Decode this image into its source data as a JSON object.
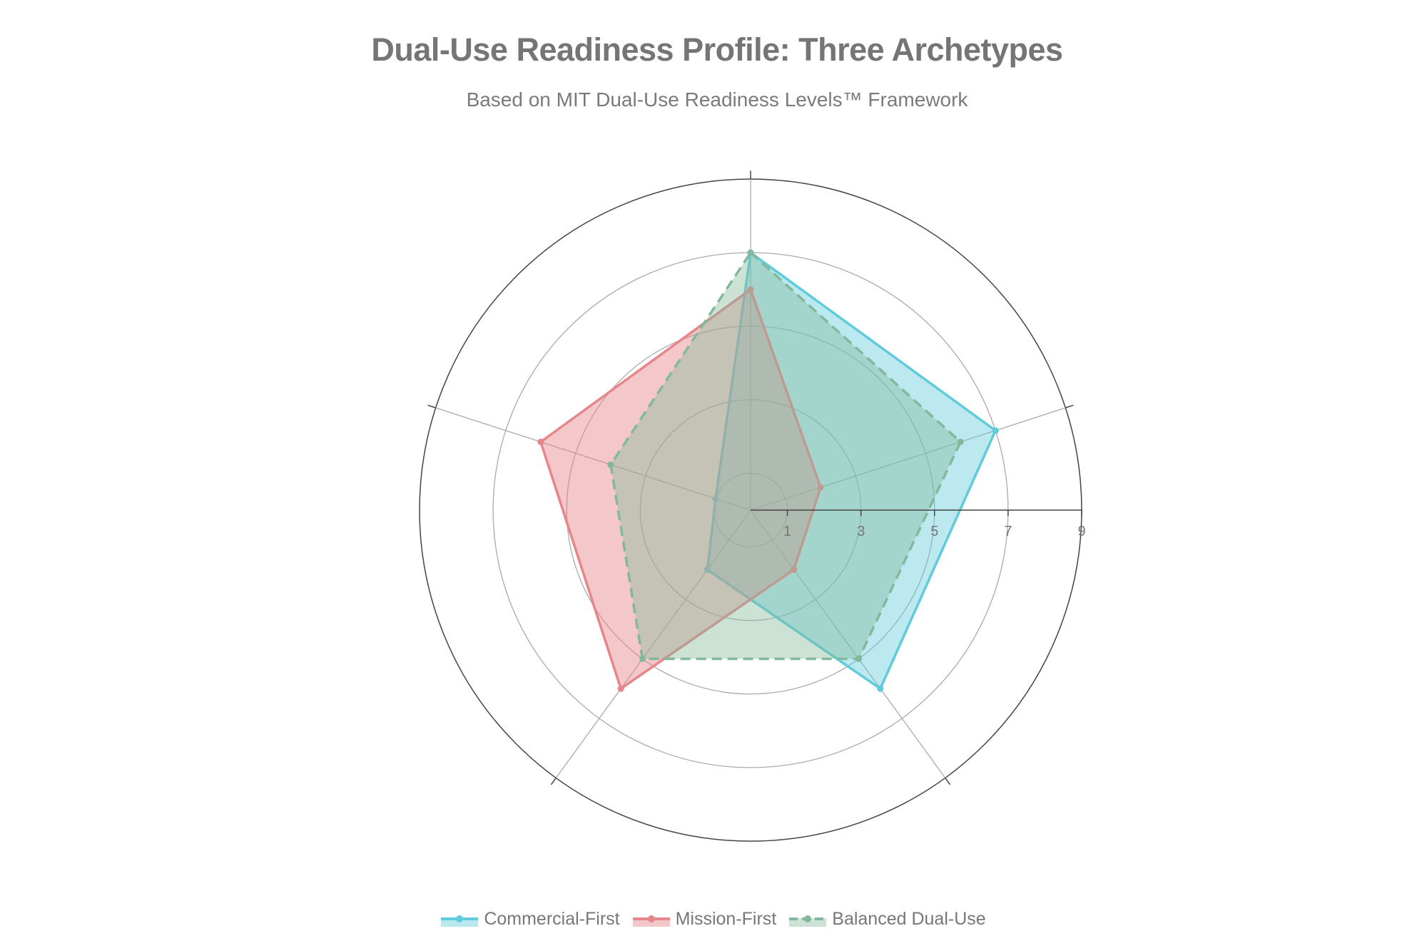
{
  "chart_data": {
    "type": "radar",
    "title": "Dual-Use Readiness Profile: Three Archetypes",
    "subtitle": "Based on MIT Dual-Use Readiness Levels™ Framework",
    "radial_range": [
      0,
      9
    ],
    "radial_ticks": [
      "1",
      "3",
      "5",
      "7",
      "9"
    ],
    "radial_tick_values": [
      1,
      3,
      5,
      7,
      9
    ],
    "axes_count": 5,
    "grid": true,
    "legend_position": "bottom",
    "series": [
      {
        "name": "Commercial-First",
        "values": [
          7,
          7,
          6,
          2,
          1
        ],
        "color": "#5fcbdb",
        "fill": "rgba(95,203,219,0.42)",
        "dash": false
      },
      {
        "name": "Mission-First",
        "values": [
          6,
          2,
          2,
          6,
          6
        ],
        "color": "#e6868a",
        "fill": "rgba(230,134,138,0.45)",
        "dash": false
      },
      {
        "name": "Balanced Dual-Use",
        "values": [
          7,
          6,
          5,
          5,
          4
        ],
        "color": "#82b99c",
        "fill": "rgba(130,185,156,0.42)",
        "dash": true
      }
    ]
  }
}
